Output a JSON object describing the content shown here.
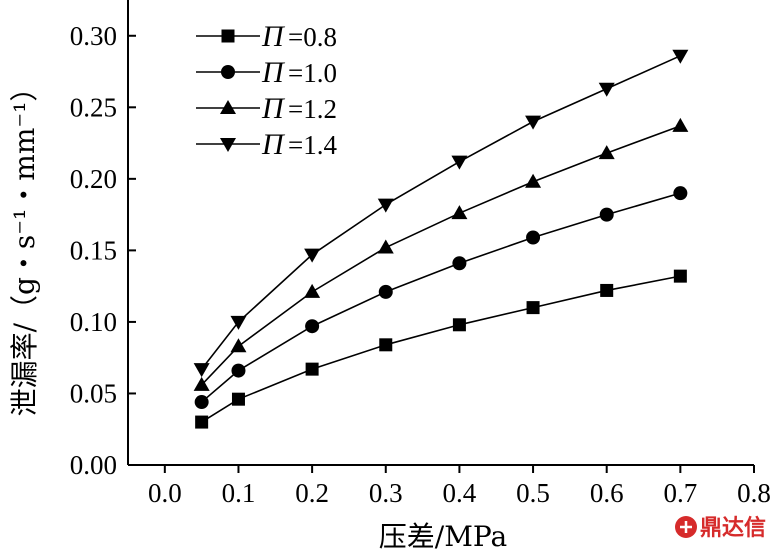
{
  "chart_data": {
    "type": "line",
    "x": [
      0.05,
      0.1,
      0.2,
      0.3,
      0.4,
      0.5,
      0.6,
      0.7
    ],
    "series": [
      {
        "name": "Π=0.8",
        "legend_symbol": "Π",
        "legend_value": "=0.8",
        "marker": "square",
        "values": [
          0.03,
          0.046,
          0.067,
          0.084,
          0.098,
          0.11,
          0.122,
          0.132
        ]
      },
      {
        "name": "Π=1.0",
        "legend_symbol": "Π",
        "legend_value": "=1.0",
        "marker": "circle",
        "values": [
          0.044,
          0.066,
          0.097,
          0.121,
          0.141,
          0.159,
          0.175,
          0.19
        ]
      },
      {
        "name": "Π=1.2",
        "legend_symbol": "Π",
        "legend_value": "=1.2",
        "marker": "triangle-up",
        "values": [
          0.056,
          0.083,
          0.121,
          0.152,
          0.176,
          0.198,
          0.218,
          0.237
        ]
      },
      {
        "name": "Π=1.4",
        "legend_symbol": "Π",
        "legend_value": "=1.4",
        "marker": "triangle-down",
        "values": [
          0.067,
          0.1,
          0.147,
          0.182,
          0.212,
          0.24,
          0.263,
          0.286
        ]
      }
    ],
    "xlabel": "压差/MPa",
    "ylabel": "泄漏率/（g・s⁻¹・mm⁻¹）",
    "xlim": [
      -0.05,
      0.8
    ],
    "ylim": [
      0.0,
      0.325
    ],
    "xticks": [
      "0.0",
      "0.1",
      "0.2",
      "0.3",
      "0.4",
      "0.5",
      "0.6",
      "0.7",
      "0.8"
    ],
    "yticks": [
      "0.00",
      "0.05",
      "0.10",
      "0.15",
      "0.20",
      "0.25",
      "0.30"
    ],
    "grid": false,
    "legend_position": "top-left",
    "line_color": "#000000"
  },
  "watermark": {
    "text": "鼎达信",
    "color": "#d62b2b"
  }
}
